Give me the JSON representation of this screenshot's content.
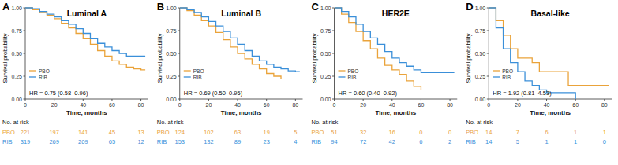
{
  "chart_data": [
    {
      "type": "line",
      "line_style": "step",
      "panel": "A",
      "title": "Luminal A",
      "x_label": "Time, months",
      "y_label": "Survival probability",
      "annotation": "HR = 0.75 (0.58–0.96)",
      "legend": "bottom-left",
      "xlim": [
        0,
        85
      ],
      "xticks": [
        0,
        20,
        40,
        60,
        80
      ],
      "ylim": [
        0,
        1
      ],
      "yticks": [
        {
          "value": 0,
          "label": "0.00"
        },
        {
          "value": 0.25,
          "label": "0.25"
        },
        {
          "value": 0.5,
          "label": "0.50"
        },
        {
          "value": 0.75,
          "label": "0.75"
        },
        {
          "value": 1,
          "label": "1.00"
        }
      ],
      "x": [
        0,
        5,
        10,
        15,
        20,
        25,
        30,
        35,
        40,
        45,
        50,
        55,
        60,
        65,
        70,
        75,
        80,
        83
      ],
      "series": [
        {
          "name": "PBO",
          "color": "#eaa33a",
          "values": [
            1,
            0.98,
            0.95,
            0.92,
            0.88,
            0.83,
            0.78,
            0.72,
            0.66,
            0.6,
            0.53,
            0.47,
            0.42,
            0.38,
            0.35,
            0.33,
            0.32,
            0.32
          ]
        },
        {
          "name": "RIB",
          "color": "#3a8fd9",
          "values": [
            1,
            0.99,
            0.96,
            0.93,
            0.9,
            0.86,
            0.82,
            0.77,
            0.72,
            0.66,
            0.61,
            0.57,
            0.53,
            0.5,
            0.47,
            0.47,
            0.47,
            0.47
          ]
        }
      ],
      "risk_table": {
        "title": "No. at risk",
        "x": [
          0,
          20,
          40,
          60,
          80
        ],
        "rows": [
          {
            "name": "PBO",
            "color": "#eaa33a",
            "values": [
              221,
              197,
              141,
              45,
              13
            ]
          },
          {
            "name": "RIB",
            "color": "#3a8fd9",
            "values": [
              319,
              269,
              209,
              65,
              12
            ]
          }
        ]
      }
    },
    {
      "type": "line",
      "line_style": "step",
      "panel": "B",
      "title": "Luminal B",
      "x_label": "Time, months",
      "y_label": "Survival probability",
      "annotation": "HR = 0.69 (0.50–0.95)",
      "legend": "bottom-left",
      "xlim": [
        0,
        85
      ],
      "xticks": [
        0,
        20,
        40,
        60,
        80
      ],
      "ylim": [
        0,
        1
      ],
      "yticks": [
        {
          "value": 0,
          "label": "0.00"
        },
        {
          "value": 0.25,
          "label": "0.25"
        },
        {
          "value": 0.5,
          "label": "0.50"
        },
        {
          "value": 0.75,
          "label": "0.75"
        },
        {
          "value": 1,
          "label": "1.00"
        }
      ],
      "x": [
        0,
        5,
        10,
        15,
        20,
        25,
        30,
        35,
        40,
        45,
        50,
        55,
        60,
        65,
        70,
        75,
        80,
        83
      ],
      "series": [
        {
          "name": "PBO",
          "color": "#eaa33a",
          "values": [
            1,
            0.97,
            0.92,
            0.86,
            0.8,
            0.73,
            0.65,
            0.57,
            0.5,
            0.44,
            0.38,
            0.33,
            0.28,
            0.25,
            0.22,
            null,
            null,
            null
          ]
        },
        {
          "name": "RIB",
          "color": "#3a8fd9",
          "values": [
            1,
            0.98,
            0.95,
            0.9,
            0.85,
            0.8,
            0.74,
            0.67,
            0.6,
            0.53,
            0.47,
            0.42,
            0.38,
            0.35,
            0.33,
            0.31,
            0.3,
            0.3
          ]
        }
      ],
      "risk_table": {
        "title": "No. at risk",
        "x": [
          0,
          20,
          40,
          60,
          80
        ],
        "rows": [
          {
            "name": "PBO",
            "color": "#eaa33a",
            "values": [
              124,
              102,
              63,
              19,
              5
            ]
          },
          {
            "name": "RIB",
            "color": "#3a8fd9",
            "values": [
              153,
              132,
              89,
              23,
              4
            ]
          }
        ]
      }
    },
    {
      "type": "line",
      "line_style": "step",
      "panel": "C",
      "title": "HER2E",
      "x_label": "Time, months",
      "y_label": "Survival probability",
      "annotation": "HR = 0.60 (0.40–0.92)",
      "legend": "bottom-left",
      "xlim": [
        0,
        85
      ],
      "xticks": [
        0,
        20,
        40,
        60,
        80
      ],
      "ylim": [
        0,
        1
      ],
      "yticks": [
        {
          "value": 0,
          "label": "0.00"
        },
        {
          "value": 0.25,
          "label": "0.25"
        },
        {
          "value": 0.5,
          "label": "0.50"
        },
        {
          "value": 0.75,
          "label": "0.75"
        },
        {
          "value": 1,
          "label": "1.00"
        }
      ],
      "x": [
        0,
        5,
        10,
        15,
        20,
        25,
        30,
        35,
        40,
        45,
        50,
        55,
        60,
        65,
        70,
        75,
        80,
        83
      ],
      "series": [
        {
          "name": "PBO",
          "color": "#eaa33a",
          "values": [
            1,
            0.93,
            0.84,
            0.74,
            0.64,
            0.55,
            0.45,
            0.37,
            0.32,
            0.27,
            0.2,
            0.14,
            0.1,
            null,
            null,
            null,
            null,
            null
          ]
        },
        {
          "name": "RIB",
          "color": "#3a8fd9",
          "values": [
            1,
            0.96,
            0.9,
            0.82,
            0.74,
            0.67,
            0.6,
            0.52,
            0.45,
            0.4,
            0.36,
            0.32,
            0.29,
            0.29,
            0.29,
            0.29,
            0.29,
            0.29
          ]
        }
      ],
      "risk_table": {
        "title": "No. at risk",
        "x": [
          0,
          20,
          40,
          60,
          80
        ],
        "rows": [
          {
            "name": "PBO",
            "color": "#eaa33a",
            "values": [
              51,
              32,
              16,
              0,
              0
            ]
          },
          {
            "name": "RIB",
            "color": "#3a8fd9",
            "values": [
              94,
              72,
              42,
              6,
              2
            ]
          }
        ]
      }
    },
    {
      "type": "line",
      "line_style": "step",
      "panel": "D",
      "title": "Basal-like",
      "x_label": "Time, months",
      "y_label": "Survival probability",
      "annotation": "HR = 1.92 (0.81–4.53)",
      "legend": "bottom-left",
      "xlim": [
        0,
        85
      ],
      "xticks": [
        0,
        20,
        40,
        60,
        80
      ],
      "ylim": [
        0,
        1
      ],
      "yticks": [
        {
          "value": 0,
          "label": "0.00"
        },
        {
          "value": 0.25,
          "label": "0.25"
        },
        {
          "value": 0.5,
          "label": "0.50"
        },
        {
          "value": 0.75,
          "label": "0.75"
        },
        {
          "value": 1,
          "label": "1.00"
        }
      ],
      "x": [
        0,
        5,
        10,
        15,
        20,
        25,
        30,
        35,
        40,
        45,
        50,
        55,
        60,
        65,
        70,
        75,
        80,
        83
      ],
      "series": [
        {
          "name": "PBO",
          "color": "#eaa33a",
          "values": [
            1,
            0.86,
            0.7,
            0.55,
            0.45,
            0.45,
            0.4,
            0.3,
            0.3,
            0.3,
            0.3,
            0.15,
            0.15,
            0.15,
            0.15,
            0.15,
            0.15,
            0.15
          ]
        },
        {
          "name": "RIB",
          "color": "#3a8fd9",
          "values": [
            1,
            0.78,
            0.55,
            0.4,
            0.3,
            0.2,
            0.15,
            0.1,
            0.07,
            0.07,
            0.07,
            0.07,
            0,
            null,
            null,
            null,
            null,
            null
          ]
        }
      ],
      "risk_table": {
        "title": "No. at risk",
        "x": [
          0,
          20,
          40,
          60,
          80
        ],
        "rows": [
          {
            "name": "PBO",
            "color": "#eaa33a",
            "values": [
              14,
              7,
              6,
              1,
              1
            ]
          },
          {
            "name": "RIB",
            "color": "#3a8fd9",
            "values": [
              14,
              5,
              1,
              1,
              0
            ]
          }
        ]
      }
    }
  ]
}
